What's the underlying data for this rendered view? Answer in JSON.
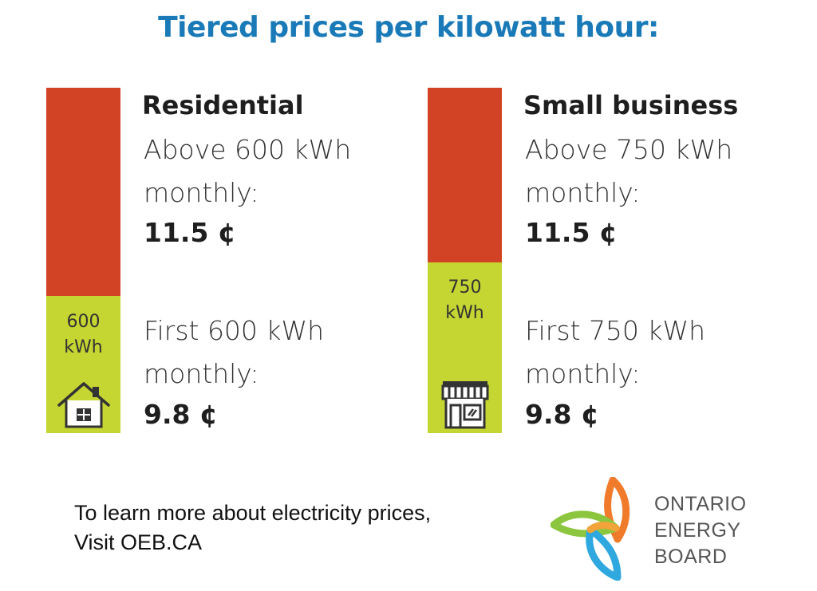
{
  "title": "Tiered prices per kilowatt hour:",
  "colors": {
    "upper_tier": "#d24325",
    "lower_tier": "#c5d531",
    "title": "#1a7ab8"
  },
  "residential": {
    "heading": "Residential",
    "upper_line1": "Above 600 kWh",
    "upper_line2": "monthly:",
    "upper_price": "11.5 ¢",
    "bar_line1": "600",
    "bar_line2": "kWh",
    "lower_line1": "First 600 kWh",
    "lower_line2": "monthly:",
    "lower_price": "9.8 ¢",
    "icon": "house-icon"
  },
  "small_business": {
    "heading": "Small business",
    "upper_line1": "Above 750 kWh",
    "upper_line2": "monthly:",
    "upper_price": "11.5 ¢",
    "bar_line1": "750",
    "bar_line2": "kWh",
    "lower_line1": "First 750 kWh",
    "lower_line2": "monthly:",
    "lower_price": "9.8 ¢",
    "icon": "storefront-icon"
  },
  "footer": {
    "line1": "To learn more about electricity prices,",
    "line2": "Visit OEB.CA"
  },
  "logo": {
    "line1": "ONTARIO",
    "line2": "ENERGY",
    "line3": "BOARD"
  }
}
